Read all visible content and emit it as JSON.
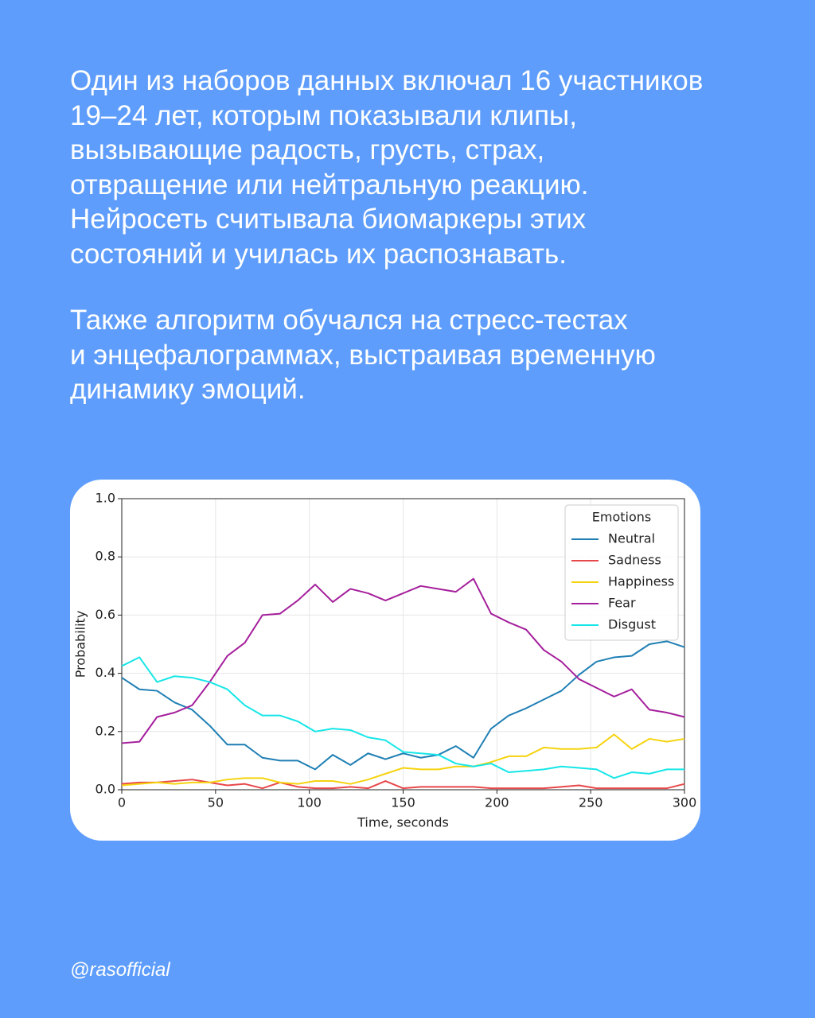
{
  "paragraphs": [
    [
      "Один из наборов данных включал 16 участников",
      "19–24 лет, которым показывали клипы,",
      "вызывающие радость, грусть, страх,",
      "отвращение или нейтральную реакцию.",
      "Нейросеть считывала биомаркеры этих",
      "состояний и училась их распознавать."
    ],
    [
      "Также алгоритм обучался на стресс-тестах",
      "и энцефалограммах, выстраивая временную",
      "динамику эмоций."
    ]
  ],
  "handle": "@rasofficial",
  "chart_data": {
    "type": "line",
    "x_label": "Time, seconds",
    "y_label": "Probability",
    "legend_title": "Emotions",
    "legend_position": "upper right",
    "grid": true,
    "xlim": [
      0,
      300
    ],
    "xticks": [
      0,
      50,
      100,
      150,
      200,
      250,
      300
    ],
    "ylim": [
      0,
      1
    ],
    "yticks": [
      {
        "value": 0,
        "label": "0.0"
      },
      0.2,
      0.4,
      0.6,
      0.8,
      {
        "value": 1,
        "label": "1.0"
      }
    ],
    "x": [
      0,
      9.4,
      18.8,
      28.1,
      37.5,
      46.9,
      56.3,
      65.6,
      75,
      84.4,
      93.8,
      103.1,
      112.5,
      121.9,
      131.3,
      140.6,
      150,
      159.4,
      168.8,
      178.1,
      187.5,
      196.9,
      206.3,
      215.6,
      225,
      234.4,
      243.8,
      253.1,
      262.5,
      271.9,
      281.3,
      290.6,
      300
    ],
    "series": [
      {
        "name": "Neutral",
        "color": "#1f7fb4",
        "values": [
          0.385,
          0.345,
          0.34,
          0.3,
          0.275,
          0.22,
          0.155,
          0.155,
          0.11,
          0.1,
          0.1,
          0.07,
          0.12,
          0.085,
          0.125,
          0.105,
          0.125,
          0.11,
          0.12,
          0.15,
          0.11,
          0.21,
          0.255,
          0.28,
          0.31,
          0.34,
          0.395,
          0.44,
          0.455,
          0.46,
          0.5,
          0.51,
          0.49
        ]
      },
      {
        "name": "Sadness",
        "color": "#e8474a",
        "values": [
          0.02,
          0.025,
          0.025,
          0.03,
          0.035,
          0.025,
          0.015,
          0.02,
          0.005,
          0.025,
          0.01,
          0.005,
          0.005,
          0.01,
          0.005,
          0.03,
          0.005,
          0.01,
          0.01,
          0.01,
          0.01,
          0.005,
          0.005,
          0.005,
          0.005,
          0.01,
          0.015,
          0.005,
          0.005,
          0.005,
          0.005,
          0.005,
          0.02
        ]
      },
      {
        "name": "Happiness",
        "color": "#f5d30e",
        "values": [
          0.015,
          0.02,
          0.025,
          0.02,
          0.025,
          0.025,
          0.035,
          0.04,
          0.04,
          0.025,
          0.02,
          0.03,
          0.03,
          0.02,
          0.035,
          0.055,
          0.075,
          0.07,
          0.07,
          0.08,
          0.08,
          0.095,
          0.115,
          0.115,
          0.145,
          0.14,
          0.14,
          0.145,
          0.19,
          0.14,
          0.175,
          0.165,
          0.175
        ]
      },
      {
        "name": "Fear",
        "color": "#a51f9c",
        "values": [
          0.16,
          0.165,
          0.25,
          0.265,
          0.29,
          0.37,
          0.46,
          0.505,
          0.6,
          0.605,
          0.65,
          0.705,
          0.645,
          0.69,
          0.675,
          0.65,
          0.675,
          0.7,
          0.69,
          0.68,
          0.725,
          0.605,
          0.575,
          0.55,
          0.48,
          0.44,
          0.38,
          0.35,
          0.32,
          0.345,
          0.275,
          0.265,
          0.25
        ]
      },
      {
        "name": "Disgust",
        "color": "#16e6e8",
        "values": [
          0.425,
          0.455,
          0.37,
          0.39,
          0.385,
          0.37,
          0.345,
          0.29,
          0.255,
          0.255,
          0.235,
          0.2,
          0.21,
          0.205,
          0.18,
          0.17,
          0.13,
          0.125,
          0.12,
          0.09,
          0.08,
          0.09,
          0.06,
          0.065,
          0.07,
          0.08,
          0.075,
          0.07,
          0.04,
          0.06,
          0.055,
          0.07,
          0.07
        ]
      }
    ]
  }
}
